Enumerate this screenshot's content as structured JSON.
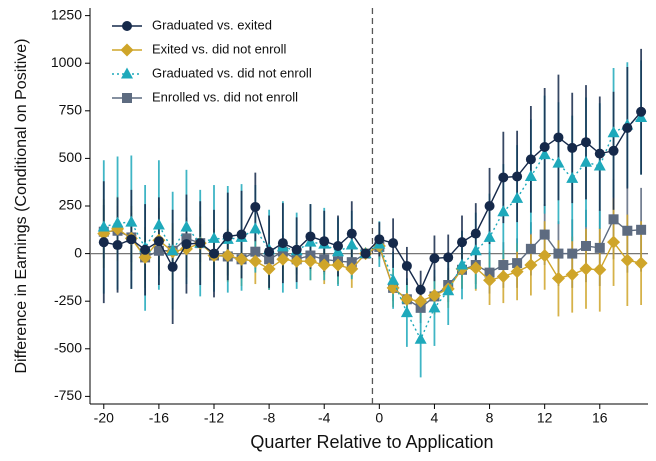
{
  "chart_data": {
    "type": "errorline",
    "xlabel": "Quarter Relative to Application",
    "ylabel": "Difference in Earnings (Conditional on Positive)",
    "x": [
      -20,
      -19,
      -18,
      -17,
      -16,
      -15,
      -14,
      -13,
      -12,
      -11,
      -10,
      -9,
      -8,
      -7,
      -6,
      -5,
      -4,
      -3,
      -2,
      -1,
      0,
      1,
      2,
      3,
      4,
      5,
      6,
      7,
      8,
      9,
      10,
      11,
      12,
      13,
      14,
      15,
      16,
      17,
      18,
      19
    ],
    "xlim": [
      -21,
      19.5
    ],
    "xticks": [
      -20,
      -16,
      -12,
      -8,
      -4,
      0,
      4,
      8,
      12,
      16
    ],
    "ylim": [
      -790,
      1290
    ],
    "yticks": [
      -750,
      -500,
      -250,
      0,
      250,
      500,
      750,
      1000,
      1250
    ],
    "vline": -0.5,
    "hline": 0,
    "legend": "upper left",
    "series": [
      {
        "name": "Graduated vs. exited",
        "color": "#15294a",
        "marker": "circle",
        "line": "solid",
        "values": [
          60,
          45,
          75,
          20,
          65,
          -70,
          50,
          55,
          0,
          90,
          100,
          245,
          10,
          55,
          20,
          90,
          65,
          40,
          105,
          0,
          75,
          55,
          -65,
          -190,
          -25,
          -20,
          60,
          105,
          250,
          400,
          405,
          495,
          560,
          610,
          555,
          585,
          525,
          540,
          660,
          745
        ],
        "errors": [
          320,
          250,
          260,
          240,
          230,
          300,
          260,
          220,
          230,
          230,
          230,
          180,
          190,
          210,
          170,
          170,
          160,
          160,
          170,
          0,
          90,
          130,
          100,
          100,
          120,
          120,
          140,
          160,
          200,
          240,
          240,
          280,
          310,
          330,
          290,
          300,
          300,
          310,
          320,
          330
        ]
      },
      {
        "name": "Exited vs. did not enroll",
        "color": "#cfa52a",
        "marker": "diamond",
        "line": "solid",
        "values": [
          105,
          130,
          80,
          -20,
          70,
          10,
          25,
          55,
          -10,
          -10,
          -30,
          -40,
          -80,
          -30,
          -40,
          -40,
          -60,
          -60,
          -80,
          0,
          40,
          -180,
          -240,
          -250,
          -220,
          -185,
          -80,
          -75,
          -140,
          -120,
          -95,
          -60,
          -10,
          -130,
          -110,
          -80,
          -85,
          60,
          -35,
          -50
        ],
        "errors": [
          180,
          170,
          170,
          160,
          170,
          150,
          150,
          140,
          140,
          140,
          140,
          120,
          110,
          110,
          100,
          100,
          100,
          100,
          100,
          0,
          70,
          100,
          90,
          90,
          100,
          100,
          100,
          120,
          130,
          140,
          150,
          160,
          180,
          200,
          200,
          210,
          220,
          230,
          240,
          220
        ]
      },
      {
        "name": "Graduated vs. did not enroll",
        "color": "#1ea9bb",
        "marker": "triangle",
        "line": "dotted",
        "values": [
          140,
          160,
          165,
          30,
          150,
          15,
          140,
          55,
          80,
          75,
          85,
          130,
          20,
          35,
          15,
          60,
          50,
          10,
          45,
          0,
          50,
          -140,
          -310,
          -450,
          -285,
          -195,
          -60,
          15,
          85,
          220,
          290,
          405,
          520,
          475,
          395,
          480,
          460,
          635,
          675,
          715
        ],
        "errors": [
          350,
          350,
          350,
          330,
          340,
          310,
          300,
          280,
          280,
          280,
          280,
          230,
          210,
          240,
          200,
          200,
          190,
          180,
          180,
          0,
          120,
          150,
          180,
          200,
          200,
          180,
          180,
          200,
          230,
          250,
          280,
          300,
          310,
          320,
          330,
          340,
          330,
          340,
          330,
          300
        ]
      },
      {
        "name": "Enrolled vs. did not enroll",
        "color": "#5d6b80",
        "marker": "square",
        "line": "solid",
        "values": [
          115,
          120,
          85,
          -20,
          15,
          15,
          80,
          55,
          -10,
          -15,
          -30,
          10,
          -30,
          10,
          -30,
          -10,
          -30,
          -40,
          -45,
          0,
          35,
          -180,
          -240,
          -285,
          -225,
          -165,
          -85,
          -60,
          -100,
          -60,
          -50,
          25,
          100,
          0,
          0,
          40,
          30,
          180,
          120,
          125
        ],
        "errors": [
          140,
          130,
          130,
          120,
          130,
          110,
          110,
          100,
          100,
          100,
          100,
          90,
          90,
          90,
          80,
          80,
          80,
          80,
          80,
          0,
          60,
          70,
          80,
          80,
          90,
          90,
          100,
          100,
          110,
          120,
          130,
          140,
          160,
          170,
          180,
          190,
          200,
          210,
          220,
          220
        ]
      }
    ]
  }
}
